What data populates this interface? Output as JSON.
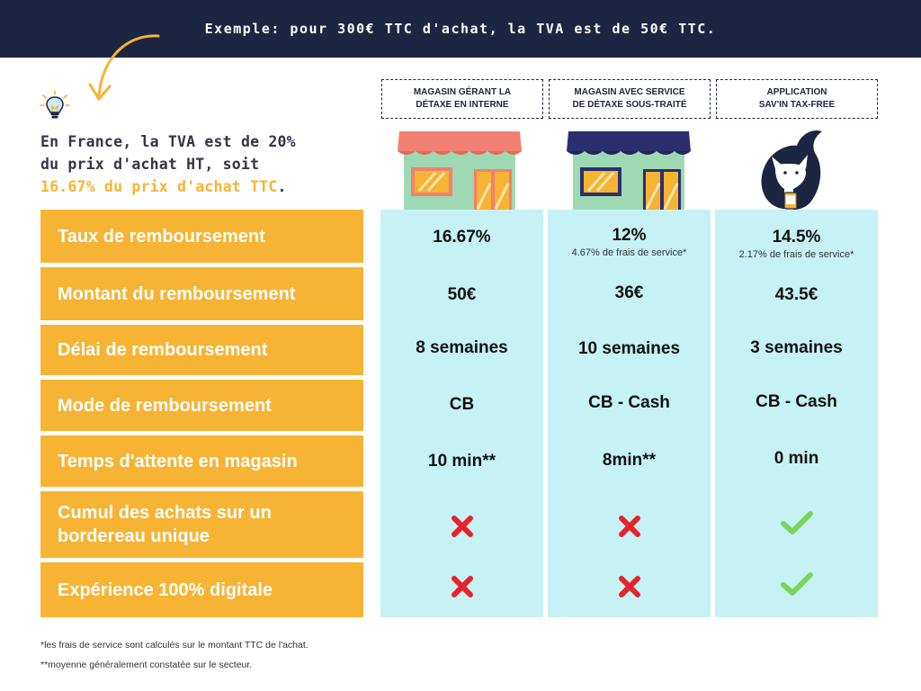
{
  "banner": {
    "text": "Exemple: pour 300€ TTC d'achat, la TVA est de 50€ TTC."
  },
  "intro": {
    "line1": "En France, la TVA est de 20%",
    "line2": "du prix d'achat HT, soit",
    "highlight": "16.67% du prix d'achat TTC",
    "end": "."
  },
  "columns": [
    {
      "line1": "MAGASIN GÉRANT LA",
      "line2": "DÉTAXE EN INTERNE"
    },
    {
      "line1": "MAGASIN AVEC SERVICE",
      "line2": "DE DÉTAXE SOUS-TRAITÉ"
    },
    {
      "line1": "APPLICATION",
      "line2": "SAV'IN TAX-FREE"
    }
  ],
  "rows": [
    {
      "label": "Taux de remboursement",
      "values": [
        "16.67%",
        "12%",
        "14.5%"
      ],
      "subs": [
        "",
        "4.67% de frais de service*",
        "2.17% de frais de service*"
      ]
    },
    {
      "label": "Montant du remboursement",
      "values": [
        "50€",
        "36€",
        "43.5€"
      ]
    },
    {
      "label": "Délai de remboursement",
      "values": [
        "8 semaines",
        "10 semaines",
        "3 semaines"
      ]
    },
    {
      "label": "Mode de remboursement",
      "values": [
        "CB",
        "CB - Cash",
        "CB - Cash"
      ]
    },
    {
      "label": "Temps d'attente en magasin",
      "values": [
        "10 min**",
        "8min**",
        "0 min"
      ]
    },
    {
      "label": "Cumul des achats  sur un bordereau unique",
      "marks": [
        "cross-icon",
        "cross-icon",
        "check-icon"
      ]
    },
    {
      "label": "Expérience 100% digitale",
      "marks": [
        "cross-icon",
        "cross-icon",
        "check-icon"
      ]
    }
  ],
  "footnotes": [
    "*les frais de service sont calculés sur le montant TTC de l'achat.",
    "**moyenne généralement constatée sur le secteur."
  ],
  "colors": {
    "banner": "#1c2541",
    "accent": "#f7b334",
    "column_bg": "#c6f2f5",
    "cross": "#e8222b",
    "check": "#7cd45a"
  }
}
